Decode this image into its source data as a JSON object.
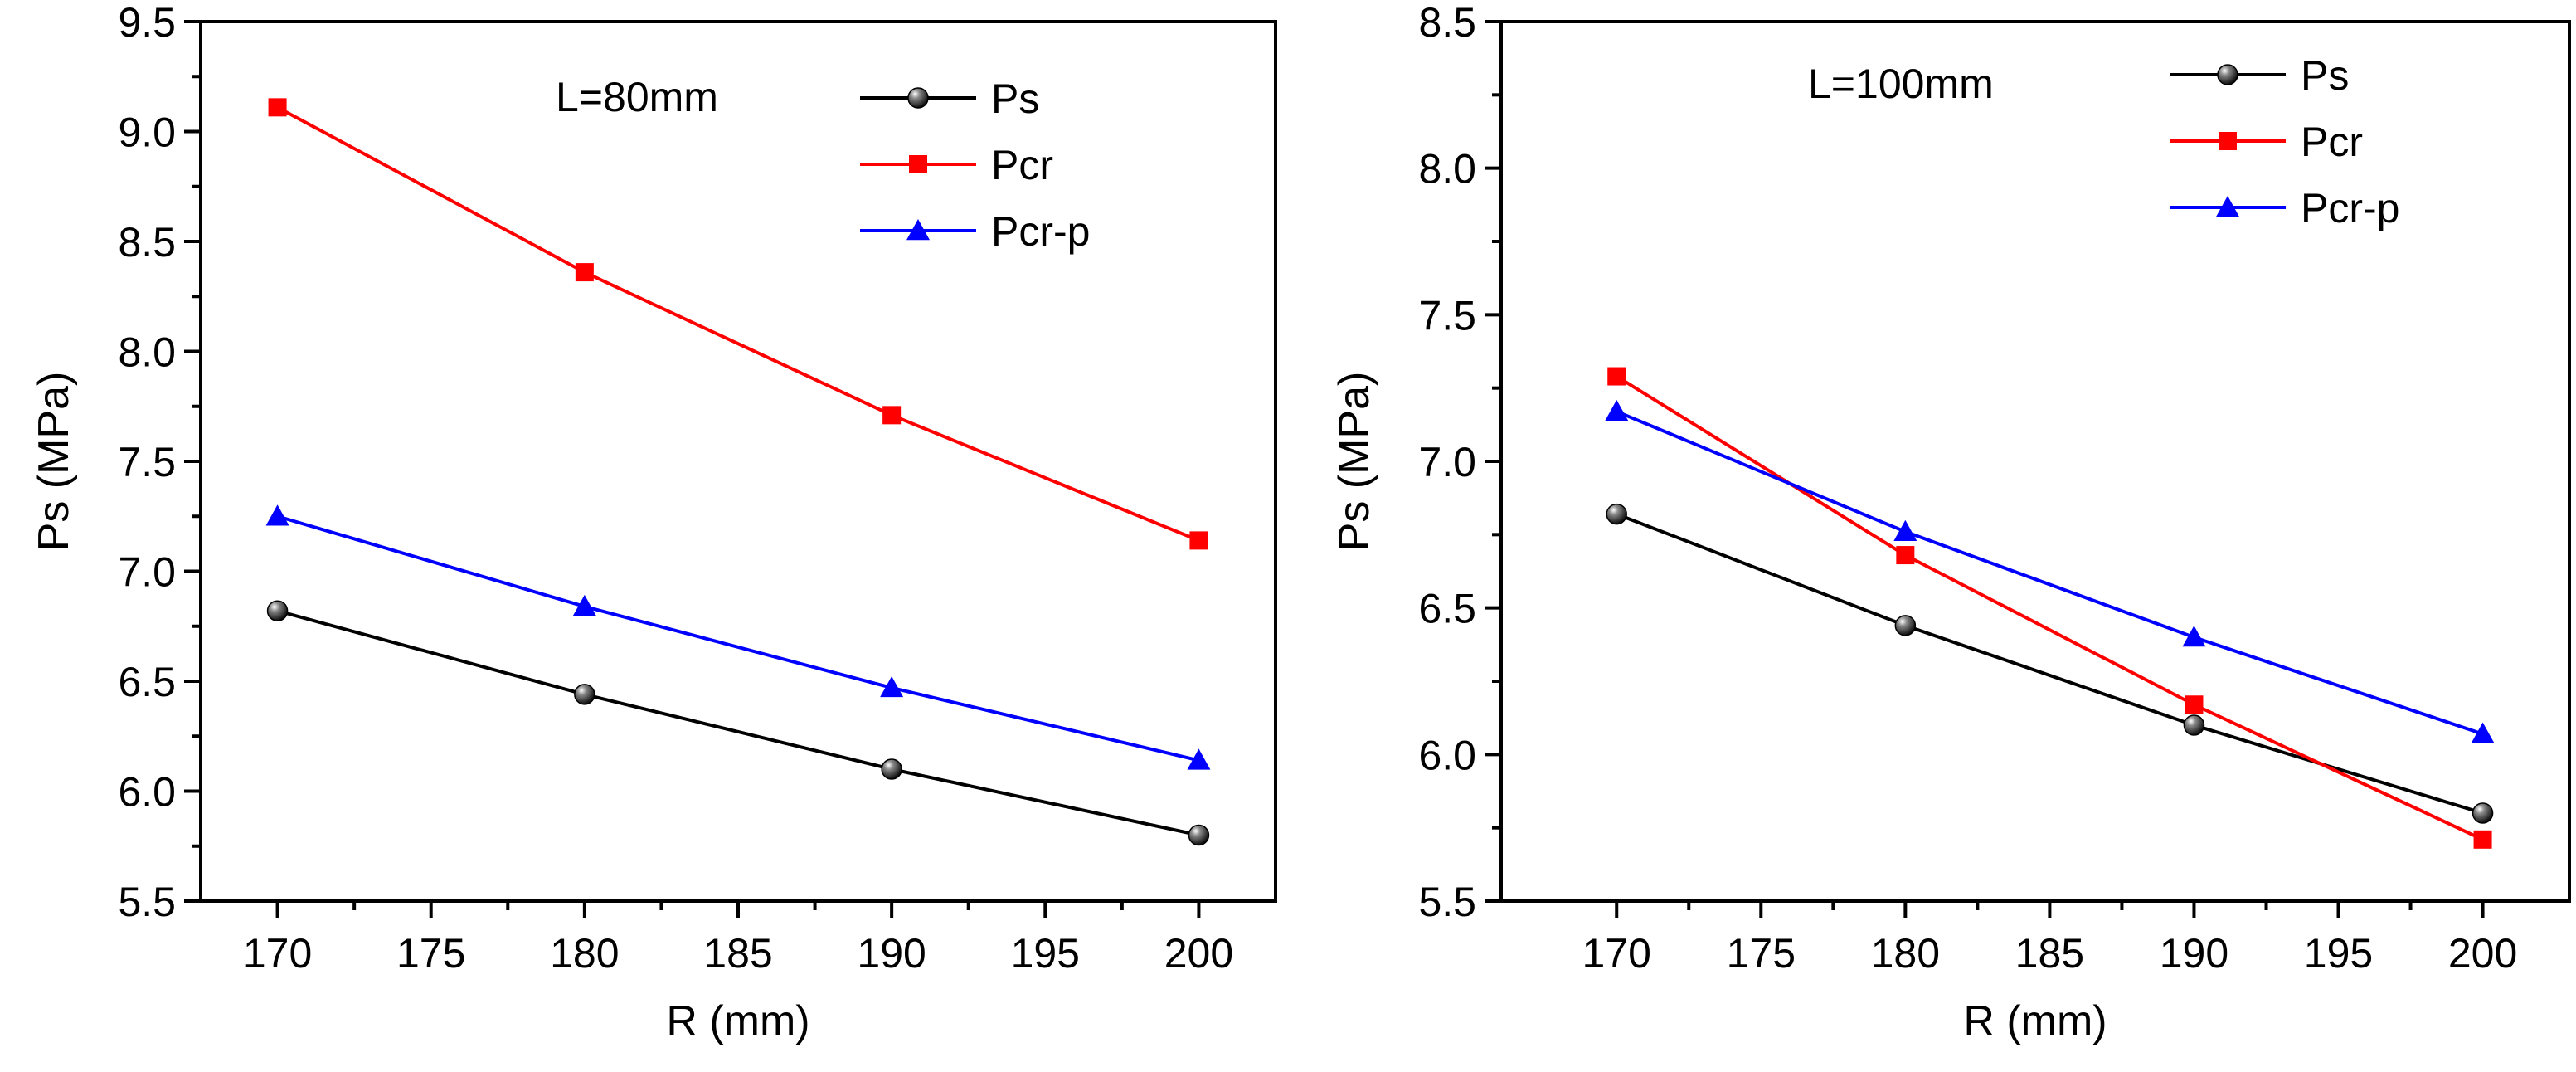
{
  "chart_data": [
    {
      "type": "line",
      "annotation": "L=80mm",
      "xlabel": "R (mm)",
      "ylabel": "Ps (MPa)",
      "xlim": [
        167.5,
        202.5
      ],
      "ylim": [
        5.5,
        9.5
      ],
      "xticks": [
        "170",
        "175",
        "180",
        "185",
        "190",
        "195",
        "200"
      ],
      "yticks": [
        "5.5",
        "6.0",
        "6.5",
        "7.0",
        "7.5",
        "8.0",
        "8.5",
        "9.0",
        "9.5"
      ],
      "x": [
        170,
        180,
        190,
        200
      ],
      "legend_position": "top-right",
      "series": [
        {
          "name": "Ps",
          "color": "#000000",
          "marker": "sphere",
          "values": [
            6.82,
            6.44,
            6.1,
            5.8
          ]
        },
        {
          "name": "Pcr",
          "color": "#ff0000",
          "marker": "square",
          "values": [
            9.11,
            8.36,
            7.71,
            7.14
          ]
        },
        {
          "name": "Pcr-p",
          "color": "#0000ff",
          "marker": "triangle",
          "values": [
            7.25,
            6.84,
            6.47,
            6.14
          ]
        }
      ]
    },
    {
      "type": "line",
      "annotation": "L=100mm",
      "xlabel": "R (mm)",
      "ylabel": "Ps (MPa)",
      "xlim": [
        166,
        203
      ],
      "ylim": [
        5.5,
        8.5
      ],
      "xticks": [
        "170",
        "175",
        "180",
        "185",
        "190",
        "195",
        "200"
      ],
      "yticks": [
        "5.5",
        "6.0",
        "6.5",
        "7.0",
        "7.5",
        "8.0",
        "8.5"
      ],
      "x": [
        170,
        180,
        190,
        200
      ],
      "legend_position": "top-right",
      "series": [
        {
          "name": "Ps",
          "color": "#000000",
          "marker": "sphere",
          "values": [
            6.82,
            6.44,
            6.1,
            5.8
          ]
        },
        {
          "name": "Pcr",
          "color": "#ff0000",
          "marker": "square",
          "values": [
            7.29,
            6.68,
            6.17,
            5.71
          ]
        },
        {
          "name": "Pcr-p",
          "color": "#0000ff",
          "marker": "triangle",
          "values": [
            7.17,
            6.76,
            6.4,
            6.07
          ]
        }
      ]
    }
  ]
}
